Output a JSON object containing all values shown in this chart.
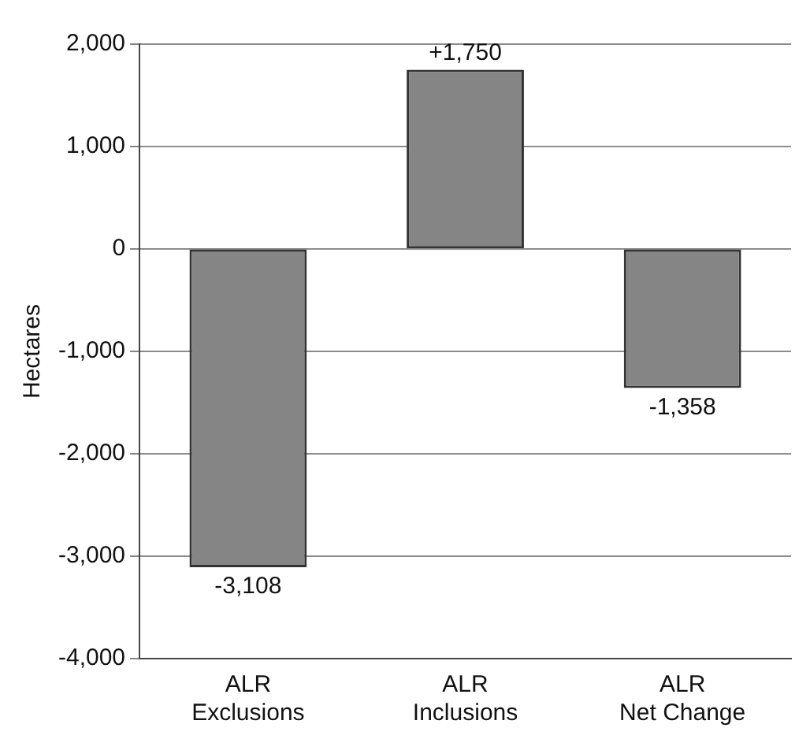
{
  "chart_data": {
    "type": "bar",
    "ylabel": "Hectares",
    "categories": [
      "ALR\nExclusions",
      "ALR\nInclusions",
      "ALR\nNet Change"
    ],
    "values": [
      -3108,
      1750,
      -1358
    ],
    "value_labels": [
      "-3,108",
      "+1,750",
      "-1,358"
    ],
    "color": "#858585",
    "ylim": [
      -4000,
      2000
    ],
    "yticks": [
      {
        "value": -4000,
        "label": "-4,000"
      },
      {
        "value": -3000,
        "label": "-3,000"
      },
      {
        "value": -2000,
        "label": "-2,000"
      },
      {
        "value": -1000,
        "label": "-1,000"
      },
      0,
      {
        "value": 1000,
        "label": "1,000"
      },
      {
        "value": 2000,
        "label": "2,000"
      }
    ],
    "grid": "y",
    "legend": false
  }
}
